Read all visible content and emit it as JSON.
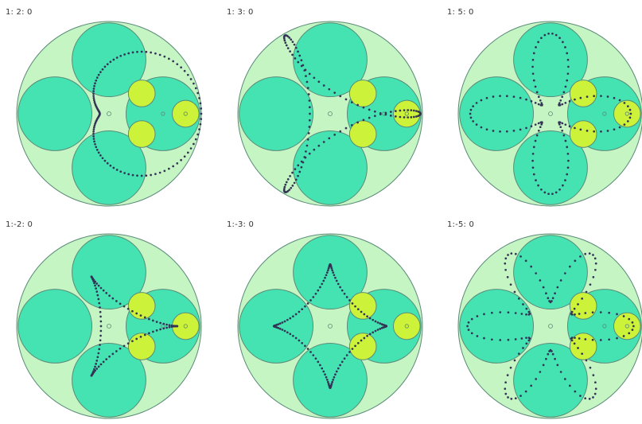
{
  "panels": [
    {
      "label": "1: 2: 0"
    },
    {
      "label": "1: 3: 0"
    },
    {
      "label": "1: 5: 0"
    },
    {
      "label": "1:-2: 0"
    },
    {
      "label": "1:-3: 0"
    },
    {
      "label": "1:-5: 0"
    }
  ],
  "colors": {
    "outer_disk": "#c6f5c4",
    "large_circle": "#45e3b2",
    "small_circle": "#cdf23a",
    "stroke": "#5a8a78",
    "trace_dot": "#333355",
    "center_marker": "#6a8fa0"
  }
}
